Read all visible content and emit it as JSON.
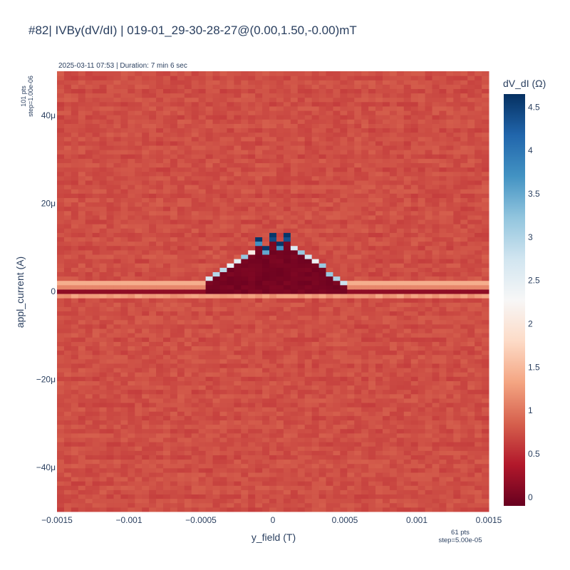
{
  "title": "#82| IVBy(dV/dI) | 019-01_29-30-28-27@(0.00,1.50,-0.00)mT",
  "subtitle": "2025-03-11 07:53 | Duration: 7 min 6 sec",
  "y_points_note": "101 pts",
  "y_step_note": "step=1.00e-06",
  "x_points_note": "61 pts",
  "x_step_note": "step=5.00e-05",
  "colors": {
    "colorscale": [
      "#67001f",
      "#b2182b",
      "#d6604d",
      "#f4a582",
      "#fddbc7",
      "#f7f7f7",
      "#d1e5f0",
      "#92c5de",
      "#4393c3",
      "#2166ac",
      "#053061"
    ]
  },
  "chart_data": {
    "type": "heatmap",
    "title": "#82| IVBy(dV/dI) | 019-01_29-30-28-27@(0.00,1.50,-0.00)mT",
    "xlabel": "y_field (T)",
    "ylabel": "appl_current (A)",
    "colorbar_title": "dV_dI (Ω)",
    "x_range": [
      -0.0015,
      0.0015
    ],
    "y_range": [
      -5e-05,
      5e-05
    ],
    "z_range": [
      -0.1,
      4.65
    ],
    "x_count": 61,
    "y_count": 101,
    "x_step": 5e-05,
    "y_step": 1e-06,
    "background_value": 0.75,
    "x_ticks": [
      {
        "value": -0.0015,
        "label": "−0.0015"
      },
      {
        "value": -0.001,
        "label": "−0.001"
      },
      {
        "value": -0.0005,
        "label": "−0.0005"
      },
      {
        "value": 0,
        "label": "0"
      },
      {
        "value": 0.0005,
        "label": "0.0005"
      },
      {
        "value": 0.001,
        "label": "0.001"
      },
      {
        "value": 0.0015,
        "label": "0.0015"
      }
    ],
    "y_ticks": [
      {
        "value": 4e-05,
        "label": "40μ"
      },
      {
        "value": 2e-05,
        "label": "20μ"
      },
      {
        "value": 0,
        "label": "0"
      },
      {
        "value": -2e-05,
        "label": "−20μ"
      },
      {
        "value": -4e-05,
        "label": "−40μ"
      }
    ],
    "colorbar_ticks": [
      {
        "value": 0,
        "label": "0"
      },
      {
        "value": 0.5,
        "label": "0.5"
      },
      {
        "value": 1,
        "label": "1"
      },
      {
        "value": 1.5,
        "label": "1.5"
      },
      {
        "value": 2,
        "label": "2"
      },
      {
        "value": 2.5,
        "label": "2.5"
      },
      {
        "value": 3,
        "label": "3"
      },
      {
        "value": 3.5,
        "label": "3.5"
      },
      {
        "value": 4,
        "label": "4"
      },
      {
        "value": 4.5,
        "label": "4.5"
      }
    ],
    "superconducting_dome_top_current": [
      {
        "y_field": -0.00045,
        "current": 3e-06
      },
      {
        "y_field": -0.0004,
        "current": 4e-06
      },
      {
        "y_field": -0.00035,
        "current": 5e-06
      },
      {
        "y_field": -0.0003,
        "current": 6e-06
      },
      {
        "y_field": -0.00025,
        "current": 7e-06
      },
      {
        "y_field": -0.0002,
        "current": 8e-06
      },
      {
        "y_field": -0.00015,
        "current": 9e-06
      },
      {
        "y_field": -0.0001,
        "current": 1.1e-05
      },
      {
        "y_field": -5e-05,
        "current": 9e-06
      },
      {
        "y_field": 0,
        "current": 1.2e-05
      },
      {
        "y_field": 5e-05,
        "current": 1e-05
      },
      {
        "y_field": 0.0001,
        "current": 1.2e-05
      },
      {
        "y_field": 0.00015,
        "current": 1e-05
      },
      {
        "y_field": 0.0002,
        "current": 9e-06
      },
      {
        "y_field": 0.00025,
        "current": 8e-06
      },
      {
        "y_field": 0.0003,
        "current": 7e-06
      },
      {
        "y_field": 0.00035,
        "current": 6e-06
      },
      {
        "y_field": 0.0004,
        "current": 4e-06
      },
      {
        "y_field": 0.00045,
        "current": 3e-06
      },
      {
        "y_field": 0.0005,
        "current": 2e-06
      }
    ],
    "dome_peak_dV_dI": 4.6,
    "dome_interior_dV_dI": -0.05,
    "switching_band_dV_dI": 1.4
  }
}
